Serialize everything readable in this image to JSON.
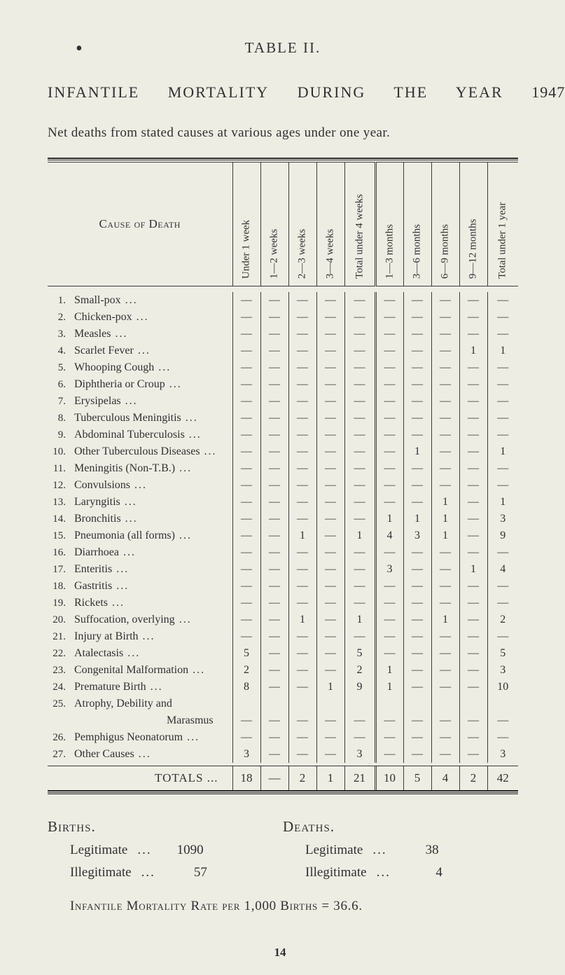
{
  "meta": {
    "page_number": "14"
  },
  "header": {
    "table_label": "TABLE II.",
    "title_parts": [
      "INFANTILE",
      "MORTALITY",
      "DURING",
      "THE",
      "YEAR"
    ],
    "year": "1947",
    "subtitle": "Net deaths from stated causes at various ages under one year."
  },
  "columns": {
    "cause_header": "Cause of Death",
    "heads": [
      "Under 1 week",
      "1—2 weeks",
      "2—3 weeks",
      "3—4 weeks",
      "Total under 4 weeks",
      "1—3 months",
      "3—6 months",
      "6—9 months",
      "9—12 months",
      "Total under 1 year"
    ]
  },
  "rows": [
    {
      "n": "1.",
      "cause": "Small-pox",
      "vals": [
        "—",
        "—",
        "—",
        "—",
        "—",
        "—",
        "—",
        "—",
        "—",
        "—"
      ]
    },
    {
      "n": "2.",
      "cause": "Chicken-pox",
      "vals": [
        "—",
        "—",
        "—",
        "—",
        "—",
        "—",
        "—",
        "—",
        "—",
        "—"
      ]
    },
    {
      "n": "3.",
      "cause": "Measles",
      "vals": [
        "—",
        "—",
        "—",
        "—",
        "—",
        "—",
        "—",
        "—",
        "—",
        "—"
      ]
    },
    {
      "n": "4.",
      "cause": "Scarlet Fever",
      "vals": [
        "—",
        "—",
        "—",
        "—",
        "—",
        "—",
        "—",
        "—",
        "1",
        "1"
      ]
    },
    {
      "n": "5.",
      "cause": "Whooping Cough",
      "vals": [
        "—",
        "—",
        "—",
        "—",
        "—",
        "—",
        "—",
        "—",
        "—",
        "—"
      ]
    },
    {
      "n": "6.",
      "cause": "Diphtheria or Croup",
      "vals": [
        "—",
        "—",
        "—",
        "—",
        "—",
        "—",
        "—",
        "—",
        "—",
        "—"
      ]
    },
    {
      "n": "7.",
      "cause": "Erysipelas",
      "vals": [
        "—",
        "—",
        "—",
        "—",
        "—",
        "—",
        "—",
        "—",
        "—",
        "—"
      ]
    },
    {
      "n": "8.",
      "cause": "Tuberculous Meningitis",
      "vals": [
        "—",
        "—",
        "—",
        "—",
        "—",
        "—",
        "—",
        "—",
        "—",
        "—"
      ]
    },
    {
      "n": "9.",
      "cause": "Abdominal Tuberculosis",
      "vals": [
        "—",
        "—",
        "—",
        "—",
        "—",
        "—",
        "—",
        "—",
        "—",
        "—"
      ]
    },
    {
      "n": "10.",
      "cause": "Other Tuberculous Diseases",
      "vals": [
        "—",
        "—",
        "—",
        "—",
        "—",
        "—",
        "1",
        "—",
        "—",
        "1"
      ]
    },
    {
      "n": "11.",
      "cause": "Meningitis (Non-T.B.)",
      "vals": [
        "—",
        "—",
        "—",
        "—",
        "—",
        "—",
        "—",
        "—",
        "—",
        "—"
      ]
    },
    {
      "n": "12.",
      "cause": "Convulsions",
      "vals": [
        "—",
        "—",
        "—",
        "—",
        "—",
        "—",
        "—",
        "—",
        "—",
        "—"
      ]
    },
    {
      "n": "13.",
      "cause": "Laryngitis",
      "vals": [
        "—",
        "—",
        "—",
        "—",
        "—",
        "—",
        "—",
        "1",
        "—",
        "1"
      ]
    },
    {
      "n": "14.",
      "cause": "Bronchitis",
      "vals": [
        "—",
        "—",
        "—",
        "—",
        "—",
        "1",
        "1",
        "1",
        "—",
        "3"
      ]
    },
    {
      "n": "15.",
      "cause": "Pneumonia (all forms)",
      "vals": [
        "—",
        "—",
        "1",
        "—",
        "1",
        "4",
        "3",
        "1",
        "—",
        "9"
      ]
    },
    {
      "n": "16.",
      "cause": "Diarrhoea",
      "vals": [
        "—",
        "—",
        "—",
        "—",
        "—",
        "—",
        "—",
        "—",
        "—",
        "—"
      ]
    },
    {
      "n": "17.",
      "cause": "Enteritis",
      "vals": [
        "—",
        "—",
        "—",
        "—",
        "—",
        "3",
        "—",
        "—",
        "1",
        "4"
      ]
    },
    {
      "n": "18.",
      "cause": "Gastritis",
      "vals": [
        "—",
        "—",
        "—",
        "—",
        "—",
        "—",
        "—",
        "—",
        "—",
        "—"
      ]
    },
    {
      "n": "19.",
      "cause": "Rickets",
      "vals": [
        "—",
        "—",
        "—",
        "—",
        "—",
        "—",
        "—",
        "—",
        "—",
        "—"
      ]
    },
    {
      "n": "20.",
      "cause": "Suffocation, overlying",
      "vals": [
        "—",
        "—",
        "1",
        "—",
        "1",
        "—",
        "—",
        "1",
        "—",
        "2"
      ]
    },
    {
      "n": "21.",
      "cause": "Injury at Birth",
      "vals": [
        "—",
        "—",
        "—",
        "—",
        "—",
        "—",
        "—",
        "—",
        "—",
        "—"
      ]
    },
    {
      "n": "22.",
      "cause": "Atalectasis",
      "vals": [
        "5",
        "—",
        "—",
        "—",
        "5",
        "—",
        "—",
        "—",
        "—",
        "5"
      ]
    },
    {
      "n": "23.",
      "cause": "Congenital Malformation",
      "vals": [
        "2",
        "—",
        "—",
        "—",
        "2",
        "1",
        "—",
        "—",
        "—",
        "3"
      ]
    },
    {
      "n": "24.",
      "cause": "Premature Birth",
      "vals": [
        "8",
        "—",
        "—",
        "1",
        "9",
        "1",
        "—",
        "—",
        "—",
        "10"
      ]
    },
    {
      "n": "25.",
      "cause": "Atrophy, Debility and",
      "vals": [
        "",
        "",
        "",
        "",
        "",
        "",
        "",
        "",
        "",
        ""
      ]
    },
    {
      "n": "",
      "cause": "Marasmus",
      "indent": true,
      "vals": [
        "—",
        "—",
        "—",
        "—",
        "—",
        "—",
        "—",
        "—",
        "—",
        "—"
      ]
    },
    {
      "n": "26.",
      "cause": "Pemphigus Neonatorum",
      "vals": [
        "—",
        "—",
        "—",
        "—",
        "—",
        "—",
        "—",
        "—",
        "—",
        "—"
      ]
    },
    {
      "n": "27.",
      "cause": "Other Causes",
      "vals": [
        "3",
        "—",
        "—",
        "—",
        "3",
        "—",
        "—",
        "—",
        "—",
        "3"
      ]
    }
  ],
  "totals": {
    "label": "TOTALS   ...",
    "vals": [
      "18",
      "—",
      "2",
      "1",
      "21",
      "10",
      "5",
      "4",
      "2",
      "42"
    ]
  },
  "bd": {
    "births_label": "Births.",
    "deaths_label": "Deaths.",
    "legit_label": "Legitimate",
    "illegit_label": "Illegitimate",
    "births_legit": "1090",
    "births_illegit": "57",
    "deaths_legit": "38",
    "deaths_illegit": "4",
    "imr_line": "Infantile Mortality Rate per 1,000 Births = 36.6."
  },
  "style": {
    "bg": "#eeede4",
    "fg": "#313031"
  }
}
